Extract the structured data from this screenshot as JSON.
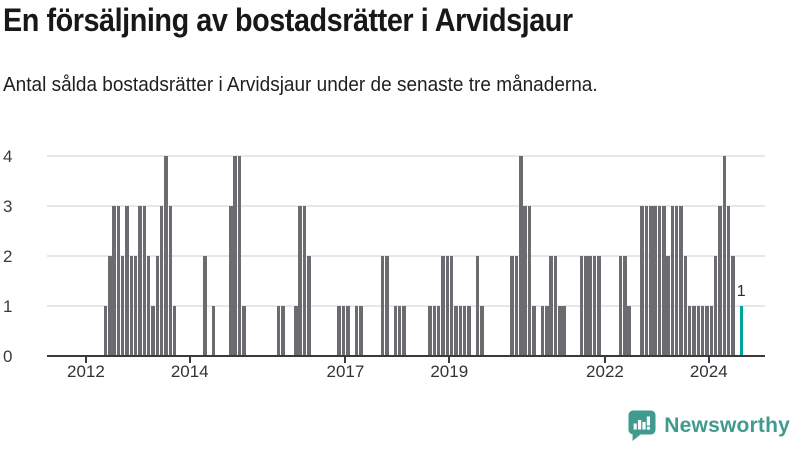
{
  "header": {
    "title": "En försäljning av bostadsrätter i Arvidsjaur",
    "subtitle": "Antal sålda bostadsrätter i Arvidsjaur under de senaste tre månaderna."
  },
  "chart_data": {
    "type": "bar",
    "title": "En försäljning av bostadsrätter i Arvidsjaur",
    "subtitle": "Antal sålda bostadsrätter i Arvidsjaur under de senaste tre månaderna.",
    "x_unit": "month",
    "x_start_month": "2011-04",
    "x_end_month": "2025-01",
    "values": [
      0,
      0,
      0,
      0,
      0,
      0,
      0,
      0,
      0,
      0,
      0,
      0,
      0,
      1,
      2,
      3,
      3,
      2,
      3,
      2,
      2,
      3,
      3,
      2,
      1,
      2,
      3,
      4,
      3,
      1,
      0,
      0,
      0,
      0,
      0,
      0,
      2,
      0,
      1,
      0,
      0,
      0,
      3,
      4,
      4,
      1,
      0,
      0,
      0,
      0,
      0,
      0,
      0,
      1,
      1,
      0,
      0,
      1,
      3,
      3,
      2,
      0,
      0,
      0,
      0,
      0,
      0,
      1,
      1,
      1,
      0,
      1,
      1,
      0,
      0,
      0,
      0,
      2,
      2,
      0,
      1,
      1,
      1,
      0,
      0,
      0,
      0,
      0,
      1,
      1,
      1,
      2,
      2,
      2,
      1,
      1,
      1,
      1,
      0,
      2,
      1,
      0,
      0,
      0,
      0,
      0,
      0,
      2,
      2,
      4,
      3,
      3,
      1,
      0,
      1,
      1,
      2,
      2,
      1,
      1,
      0,
      0,
      0,
      2,
      2,
      2,
      2,
      2,
      0,
      0,
      0,
      0,
      2,
      2,
      1,
      0,
      0,
      3,
      3,
      3,
      3,
      3,
      3,
      2,
      3,
      3,
      3,
      2,
      1,
      1,
      1,
      1,
      1,
      1,
      2,
      3,
      4,
      3,
      2,
      0,
      1,
      0,
      0,
      0,
      0,
      0
    ],
    "highlight": {
      "index": 160,
      "label": "1"
    },
    "ylim": [
      0,
      4
    ],
    "y_ticks": [
      "0",
      "1",
      "2",
      "3",
      "4"
    ],
    "x_ticks": [
      {
        "label": "2012",
        "index": 9
      },
      {
        "label": "2014",
        "index": 33
      },
      {
        "label": "2017",
        "index": 69
      },
      {
        "label": "2019",
        "index": 93
      },
      {
        "label": "2022",
        "index": 129
      },
      {
        "label": "2024",
        "index": 153
      }
    ],
    "grid": true,
    "legend": false,
    "colors": {
      "bar": "#6b6b70",
      "highlight": "#00a39c",
      "grid": "#e7e7e7",
      "axis": "#3a3a3e"
    }
  },
  "footer": {
    "brand": "Newsworthy",
    "brand_color": "#3f9a8f",
    "logo_icon": "bar-chart-speech-bubble-icon"
  }
}
